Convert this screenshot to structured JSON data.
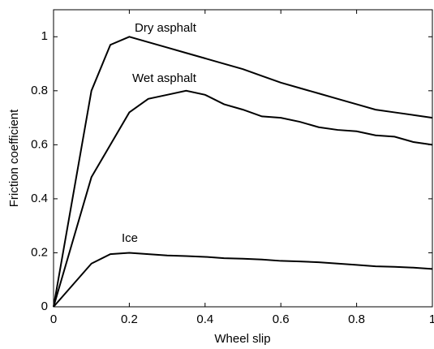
{
  "chart_data": {
    "type": "line",
    "xlabel": "Wheel slip",
    "ylabel": "Friction coefficient",
    "x": [
      0,
      0.1,
      0.15,
      0.2,
      0.25,
      0.3,
      0.35,
      0.4,
      0.45,
      0.5,
      0.55,
      0.6,
      0.65,
      0.7,
      0.75,
      0.8,
      0.85,
      0.9,
      0.95,
      1.0
    ],
    "series": [
      {
        "name": "Dry asphalt",
        "color": "#000000",
        "values": [
          0,
          0.8,
          0.97,
          1.0,
          0.98,
          0.96,
          0.94,
          0.92,
          0.9,
          0.88,
          0.855,
          0.83,
          0.81,
          0.79,
          0.77,
          0.75,
          0.73,
          0.72,
          0.71,
          0.7
        ]
      },
      {
        "name": "Wet asphalt",
        "color": "#000000",
        "values": [
          0,
          0.48,
          0.6,
          0.72,
          0.77,
          0.785,
          0.8,
          0.785,
          0.75,
          0.73,
          0.705,
          0.7,
          0.685,
          0.665,
          0.655,
          0.65,
          0.635,
          0.63,
          0.61,
          0.6
        ]
      },
      {
        "name": "Ice",
        "color": "#000000",
        "values": [
          0,
          0.16,
          0.195,
          0.2,
          0.195,
          0.19,
          0.188,
          0.185,
          0.18,
          0.178,
          0.175,
          0.17,
          0.168,
          0.165,
          0.16,
          0.155,
          0.15,
          0.148,
          0.145,
          0.14
        ]
      }
    ],
    "xlim": [
      0,
      1
    ],
    "xticks": [
      0,
      0.2,
      0.4,
      0.6,
      0.8,
      1
    ],
    "ylim": [
      0,
      1.1
    ],
    "yticks": [
      0,
      0.2,
      0.4,
      0.6,
      0.8,
      1
    ],
    "grid": false
  }
}
